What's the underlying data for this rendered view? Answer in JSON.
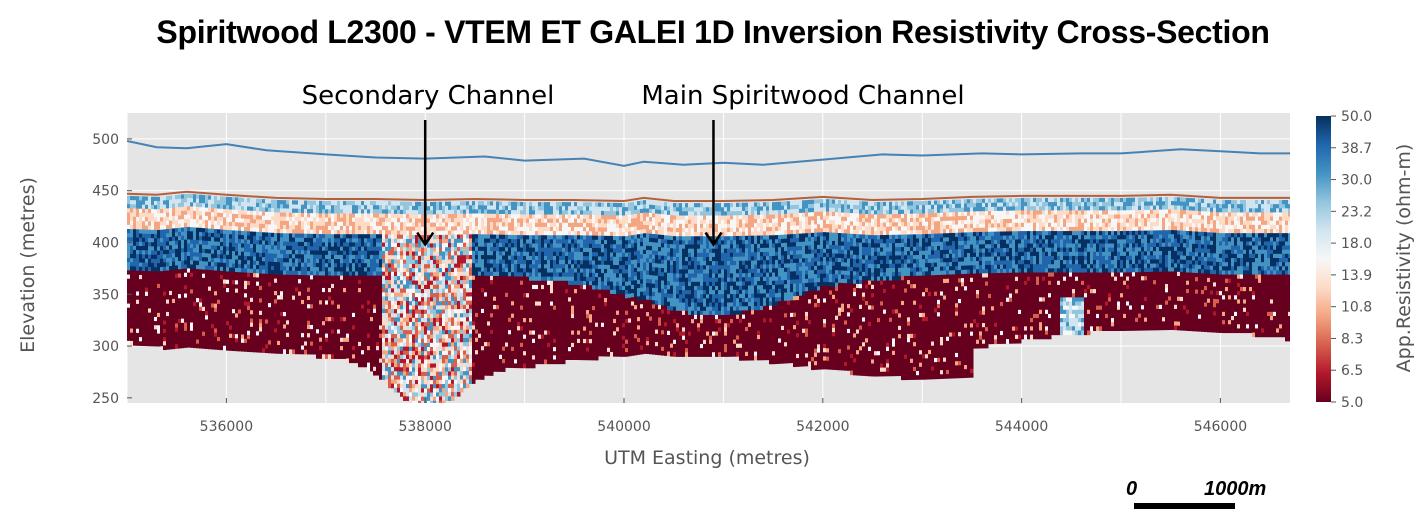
{
  "chart_data": {
    "type": "heatmap",
    "title": "Spiritwood L2300 -  VTEM ET GALEI 1D Inversion Resistivity Cross-Section",
    "xlabel": "UTM Easting (metres)",
    "ylabel": "Elevation (metres)",
    "xlim": [
      535000,
      546700
    ],
    "ylim": [
      245,
      525
    ],
    "xticks": [
      536000,
      538000,
      540000,
      542000,
      544000,
      546000
    ],
    "yticks": [
      250,
      300,
      350,
      400,
      450,
      500
    ],
    "grid": true,
    "colorbar": {
      "label": "App.Resistivity (ohm-m)",
      "ticks": [
        "50.0",
        "38.7",
        "30.0",
        "23.2",
        "18.0",
        "13.9",
        "10.8",
        "8.3",
        "6.5",
        "5.0"
      ],
      "colors": [
        "#053061",
        "#2166ac",
        "#4393c3",
        "#92c5de",
        "#d1e5f0",
        "#f7f7f7",
        "#fddbc7",
        "#f4a582",
        "#d6604d",
        "#b2182b",
        "#67001f"
      ]
    },
    "series": [
      {
        "name": "",
        "color": "#4682b4",
        "x": [
          535000,
          535300,
          535600,
          536000,
          536400,
          537000,
          537500,
          538000,
          538600,
          539000,
          539600,
          540000,
          540200,
          540600,
          541000,
          541400,
          542000,
          542600,
          543000,
          543600,
          544000,
          544600,
          545000,
          545600,
          546000,
          546400,
          546700
        ],
        "y": [
          498,
          492,
          491,
          495,
          489,
          485,
          482,
          481,
          483,
          479,
          481,
          474,
          478,
          475,
          477,
          475,
          480,
          485,
          484,
          486,
          485,
          486,
          486,
          490,
          488,
          486,
          486
        ]
      },
      {
        "name": "",
        "color": "#b5603c",
        "x": [
          535000,
          535300,
          535600,
          536000,
          536500,
          537000,
          537500,
          538000,
          538500,
          539000,
          539500,
          540000,
          540200,
          540500,
          541000,
          541500,
          542000,
          542500,
          543000,
          543500,
          544000,
          544500,
          545000,
          545500,
          546000,
          546700
        ],
        "y": [
          447,
          446,
          449,
          446,
          443,
          442,
          442,
          441,
          442,
          441,
          441,
          440,
          443,
          440,
          440,
          441,
          444,
          441,
          442,
          444,
          445,
          445,
          445,
          446,
          443,
          443
        ]
      }
    ],
    "annotations": [
      {
        "text": "Secondary Channel",
        "x": 538000,
        "y": 398
      },
      {
        "text": "Main Spiritwood Channel",
        "x": 540900,
        "y": 398
      }
    ]
  },
  "scale_bar": {
    "left_label": "0",
    "right_label": "1000m"
  }
}
